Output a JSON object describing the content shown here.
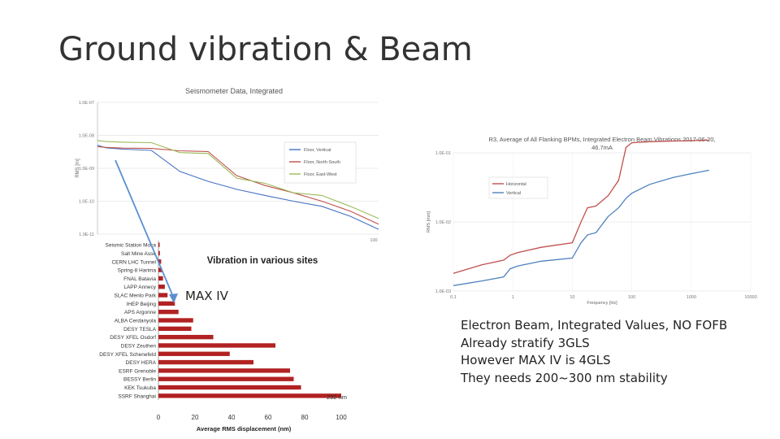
{
  "slide": {
    "title": "Ground vibration & Beam",
    "notes": [
      "Electron Beam, Integrated Values, NO FOFB",
      "Already stratify 3GLS",
      "However MAX IV is 4GLS",
      "They needs 200~300 nm stability"
    ],
    "maxiv_label": "MAX IV"
  },
  "chart_data": [
    {
      "type": "line",
      "title": "Seismometer Data, Integrated",
      "ylabel": "RMS [m]",
      "yscale": "log",
      "yticks": [
        "1.0E-07",
        "1.0E-08",
        "1.0E-09",
        "1.0E-10",
        "1.0E-11"
      ],
      "ylim": [
        1e-11,
        1e-07
      ],
      "xtick_labels": [
        "100"
      ],
      "legend_position": "right",
      "x": [
        1,
        4,
        10,
        20,
        30,
        40,
        50,
        60,
        70,
        80,
        90,
        100
      ],
      "series": [
        {
          "name": "Floor, Vertical",
          "color": "#4472c4",
          "values": [
            5e-09,
            4.2e-09,
            3.8e-09,
            3.5e-09,
            8e-10,
            4e-10,
            2.3e-10,
            1.5e-10,
            1e-10,
            7e-11,
            3.5e-11,
            1.4e-11
          ]
        },
        {
          "name": "Floor, North-South",
          "color": "#c0504d",
          "values": [
            4.5e-09,
            4.3e-09,
            4.1e-09,
            4e-09,
            3.4e-09,
            3.2e-09,
            6e-10,
            3e-10,
            1.8e-10,
            1e-10,
            5e-11,
            2e-11
          ]
        },
        {
          "name": "Floor, East-West",
          "color": "#9bbb59",
          "values": [
            7e-09,
            6.5e-09,
            6.2e-09,
            6e-09,
            3e-09,
            2.8e-09,
            5e-10,
            3.5e-10,
            1.8e-10,
            1.5e-10,
            7e-11,
            3e-11
          ]
        }
      ]
    },
    {
      "type": "bar",
      "title": "Vibration in various sites",
      "xlabel": "Average RMS displacement (nm)",
      "xlim": [
        0,
        100
      ],
      "xticks": [
        0,
        20,
        40,
        60,
        80,
        100
      ],
      "categories": [
        "Seismic Station Moxa",
        "Salt Mine Asse",
        "CERN LHC Tunnel",
        "Spring-8 Harima",
        "FNAL Batavia",
        "LAPP Annecy",
        "SLAC Menlo Park",
        "IHEP Beijing",
        "APS Argonne",
        "ALBA Cerdanyola",
        "DESY TESLA",
        "DESY XFEL Osdorf",
        "DESY Zeuthen",
        "DESY XFEL Schenefeld",
        "DESY HERA",
        "ESRF Grenoble",
        "BESSY Berlin",
        "KEK Tsukuba",
        "SSRF Shanghai"
      ],
      "values": [
        0.5,
        0.8,
        1.5,
        2,
        2.5,
        3.5,
        5,
        9,
        11,
        19,
        18,
        30,
        64,
        39,
        52,
        72,
        74,
        78,
        100
      ],
      "bar_color": "#b22222",
      "annotation": "292 nm"
    },
    {
      "type": "line",
      "title": "R3, Average of All Flanking BPMs, Integrated Electron Beam Vibrations 2017-06-20, 46.7mA",
      "ylabel": "RMS [mm]",
      "xlabel": "Frequency [Hz]",
      "xscale": "log",
      "yscale": "log",
      "xticks": [
        "0.1",
        "1",
        "10",
        "100",
        "1000",
        "10000"
      ],
      "yticks": [
        "1.0E-03",
        "1.0E-02",
        "1.0E-01"
      ],
      "legend_position": "upper-left",
      "x": [
        0.1,
        0.3,
        0.7,
        0.9,
        1.2,
        3,
        10,
        14,
        18,
        25,
        40,
        60,
        80,
        100,
        200,
        500,
        1000,
        2000
      ],
      "series": [
        {
          "name": "Horizontal",
          "color": "#c0504d",
          "values": [
            0.0018,
            0.0024,
            0.0028,
            0.0033,
            0.0036,
            0.0043,
            0.005,
            0.01,
            0.016,
            0.017,
            0.024,
            0.04,
            0.12,
            0.14,
            0.145,
            0.148,
            0.15,
            0.152
          ]
        },
        {
          "name": "Vertical",
          "color": "#4f81bd",
          "values": [
            0.0012,
            0.0014,
            0.0016,
            0.0021,
            0.0023,
            0.0027,
            0.003,
            0.005,
            0.0065,
            0.007,
            0.012,
            0.016,
            0.022,
            0.026,
            0.035,
            0.044,
            0.05,
            0.056
          ]
        }
      ]
    }
  ]
}
